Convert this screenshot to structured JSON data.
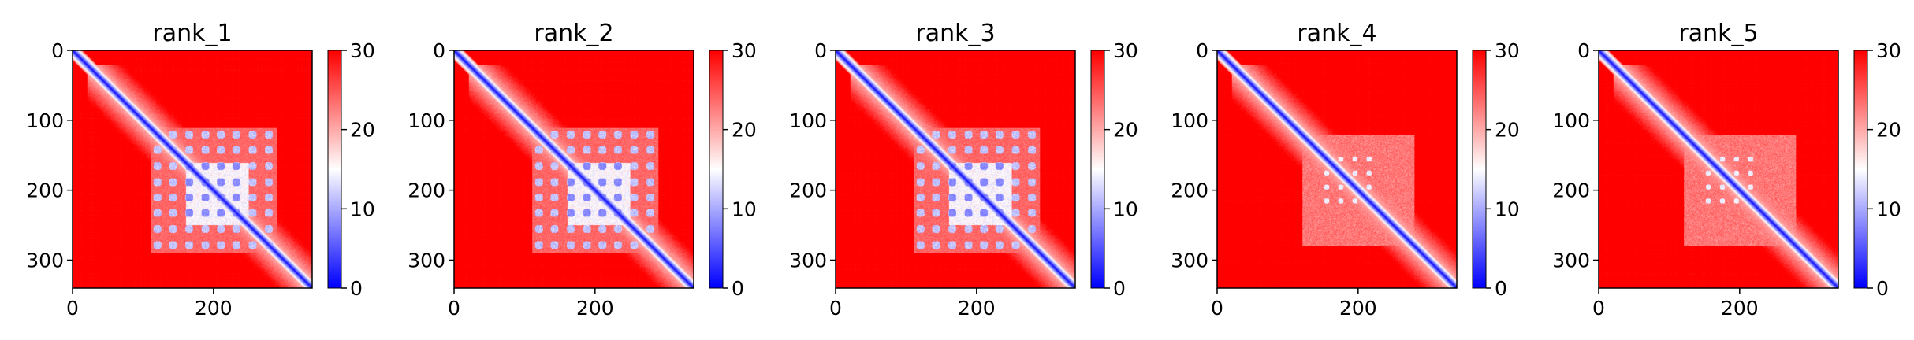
{
  "chart_data": {
    "type": "heatmap",
    "colormap": "bwr",
    "colors": {
      "low": "#0000ff",
      "mid": "#ffffff",
      "high": "#ff0000"
    },
    "color_range": [
      0,
      30
    ],
    "colorbar_ticks": [
      0,
      10,
      20,
      30
    ],
    "size": 340,
    "x_ticks": [
      0,
      200
    ],
    "y_ticks": [
      0,
      100,
      200,
      300
    ],
    "panels": [
      {
        "title": "rank_1",
        "variant": "block"
      },
      {
        "title": "rank_2",
        "variant": "block"
      },
      {
        "title": "rank_3",
        "variant": "block"
      },
      {
        "title": "rank_4",
        "variant": "diag"
      },
      {
        "title": "rank_5",
        "variant": "diag"
      }
    ]
  }
}
